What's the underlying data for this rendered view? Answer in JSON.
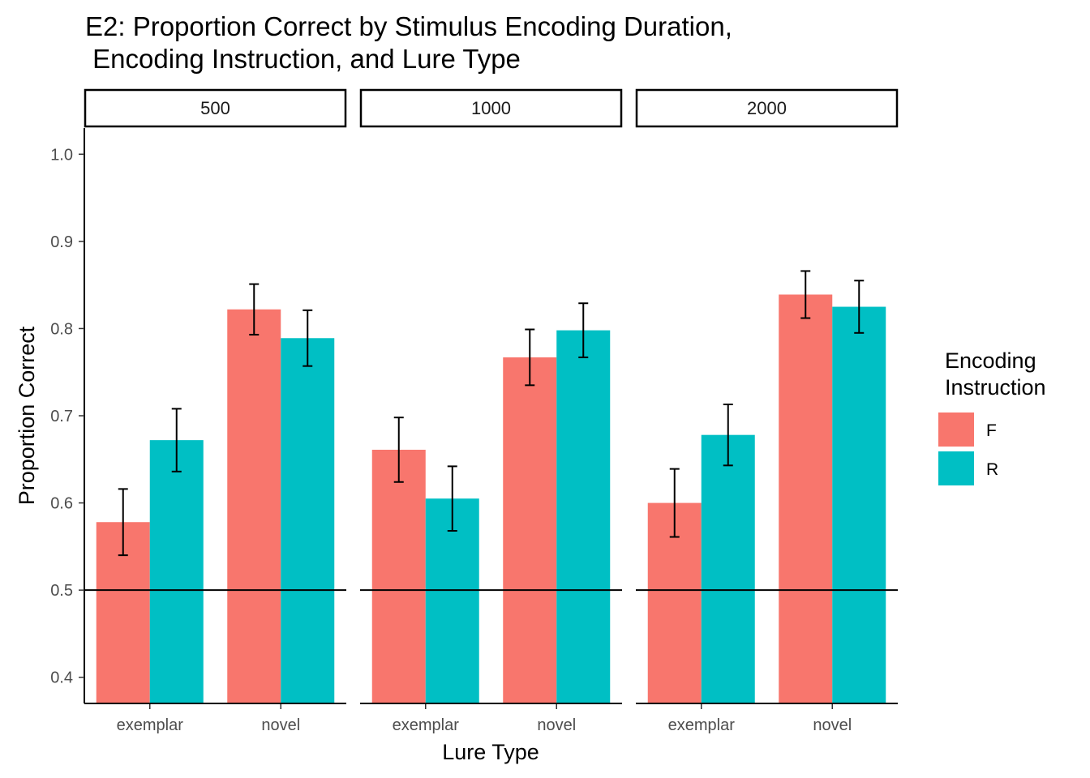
{
  "chart_data": {
    "type": "bar",
    "title_line1": "E2: Proportion Correct by Stimulus Encoding Duration,",
    "title_line2": " Encoding Instruction, and Lure Type",
    "xlabel": "Lure Type",
    "ylabel": "Proportion Correct",
    "ylim": [
      0.37,
      1.03
    ],
    "yticks": [
      "0.4",
      "0.5",
      "0.6",
      "0.7",
      "0.8",
      "0.9",
      "1.0"
    ],
    "reference_line": 0.5,
    "grid": false,
    "legend_position": "right",
    "legend": {
      "title_line1": "Encoding",
      "title_line2": "Instruction",
      "entries": [
        {
          "label": "F",
          "color": "#F8766D"
        },
        {
          "label": "R",
          "color": "#00BFC4"
        }
      ]
    },
    "categories": [
      "exemplar",
      "novel"
    ],
    "facets": [
      {
        "label": "500",
        "series": [
          {
            "name": "F",
            "values": [
              0.578,
              0.822
            ],
            "err_low": [
              0.54,
              0.793
            ],
            "err_high": [
              0.616,
              0.851
            ]
          },
          {
            "name": "R",
            "values": [
              0.672,
              0.789
            ],
            "err_low": [
              0.636,
              0.757
            ],
            "err_high": [
              0.708,
              0.821
            ]
          }
        ]
      },
      {
        "label": "1000",
        "series": [
          {
            "name": "F",
            "values": [
              0.661,
              0.767
            ],
            "err_low": [
              0.624,
              0.735
            ],
            "err_high": [
              0.698,
              0.799
            ]
          },
          {
            "name": "R",
            "values": [
              0.605,
              0.798
            ],
            "err_low": [
              0.568,
              0.767
            ],
            "err_high": [
              0.642,
              0.829
            ]
          }
        ]
      },
      {
        "label": "2000",
        "series": [
          {
            "name": "F",
            "values": [
              0.6,
              0.839
            ],
            "err_low": [
              0.561,
              0.812
            ],
            "err_high": [
              0.639,
              0.866
            ]
          },
          {
            "name": "R",
            "values": [
              0.678,
              0.825
            ],
            "err_low": [
              0.643,
              0.795
            ],
            "err_high": [
              0.713,
              0.855
            ]
          }
        ]
      }
    ]
  }
}
